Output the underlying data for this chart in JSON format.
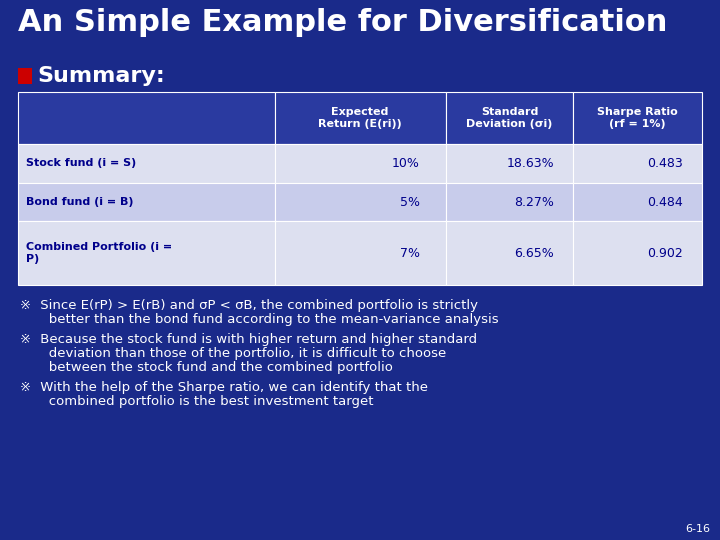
{
  "title": "An Simple Example for Diversification",
  "bg_color": "#1a2a8a",
  "title_color": "#ffffff",
  "title_fontsize": 22,
  "summary_label": "Summary:",
  "summary_color": "#ffffff",
  "summary_fontsize": 16,
  "summary_bullet_color": "#cc0000",
  "table_header_bg": "#2a3aa0",
  "table_header_color": "#ffffff",
  "table_row_bg_odd": "#dde0f0",
  "table_row_bg_even": "#c8cceb",
  "table_text_color": "#00008b",
  "table_border_color": "#ffffff",
  "col_headers": [
    "Expected\nReturn (E(ri))",
    "Standard\nDeviation (σi)",
    "Sharpe Ratio\n(rf = 1%)"
  ],
  "row_labels": [
    "Stock fund (i = S)",
    "Bond fund (i = B)",
    "Combined Portfolio (i =\nP)"
  ],
  "row_data": [
    [
      "10%",
      "18.63%",
      "0.483"
    ],
    [
      "5%",
      "8.27%",
      "0.484"
    ],
    [
      "7%",
      "6.65%",
      "0.902"
    ]
  ],
  "bullet_symbol": "※",
  "bullet_lines": [
    [
      " Since E(rP) > E(rB) and σP < σB, the combined portfolio is strictly",
      "   better than the bond fund according to the mean-variance analysis"
    ],
    [
      " Because the stock fund is with higher return and higher standard",
      "   deviation than those of the portfolio, it is difficult to choose",
      "   between the stock fund and the combined portfolio"
    ],
    [
      " With the help of the Sharpe ratio, we can identify that the",
      "   combined portfolio is the best investment target"
    ]
  ],
  "bullet_color": "#ffffff",
  "bullet_fontsize": 9.5,
  "page_number": "6-16",
  "page_number_color": "#ffffff",
  "page_number_fontsize": 8
}
